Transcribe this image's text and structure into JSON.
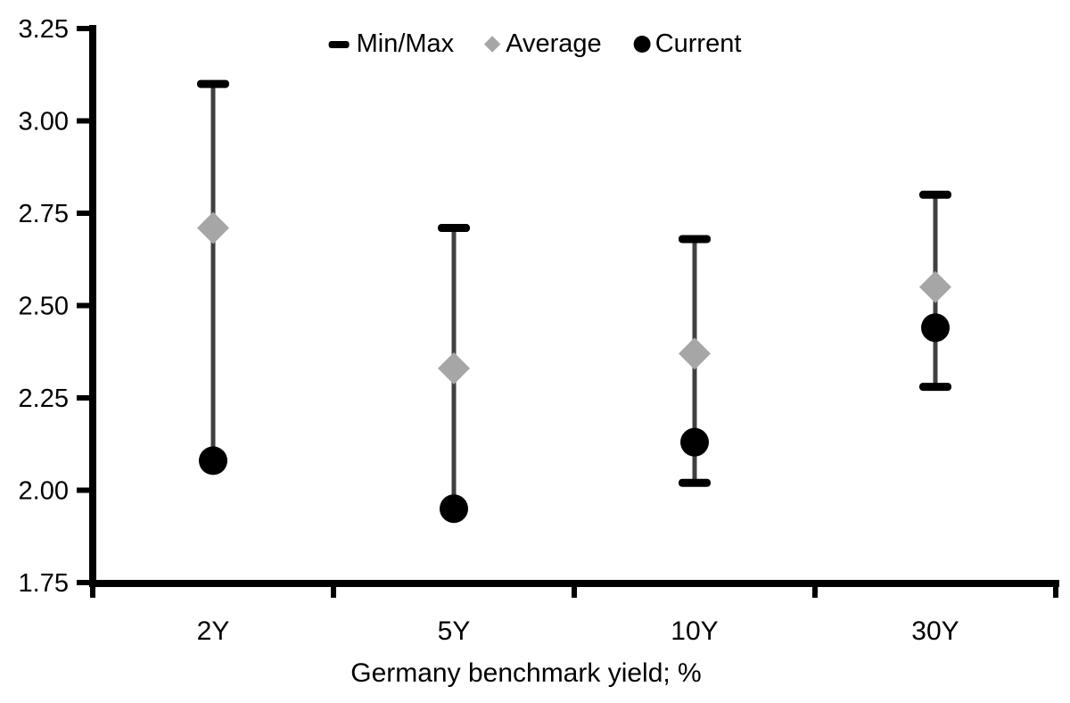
{
  "chart_data": {
    "type": "scatter",
    "subtype": "min-max-range-with-markers",
    "xlabel": "Germany benchmark yield; %",
    "ylabel": "",
    "categories": [
      "2Y",
      "5Y",
      "10Y",
      "30Y"
    ],
    "y_tick_labels": [
      "3.25",
      "3.00",
      "2.75",
      "2.50",
      "2.25",
      "2.00",
      "1.75"
    ],
    "ylim": [
      1.75,
      3.25
    ],
    "grid": false,
    "legend_position": "top",
    "series": [
      {
        "name": "Min/Max",
        "marker": "dash",
        "color": "#000000",
        "max": [
          3.1,
          2.71,
          2.68,
          2.8
        ],
        "min": [
          2.08,
          1.95,
          2.02,
          2.28
        ]
      },
      {
        "name": "Average",
        "marker": "diamond",
        "color": "#a6a6a6",
        "values": [
          2.71,
          2.33,
          2.37,
          2.55
        ]
      },
      {
        "name": "Current",
        "marker": "circle",
        "color": "#000000",
        "values": [
          2.08,
          1.95,
          2.13,
          2.44
        ]
      }
    ],
    "colors": {
      "whisker_line": "#404040",
      "axis": "#000000",
      "text": "#000000"
    }
  }
}
